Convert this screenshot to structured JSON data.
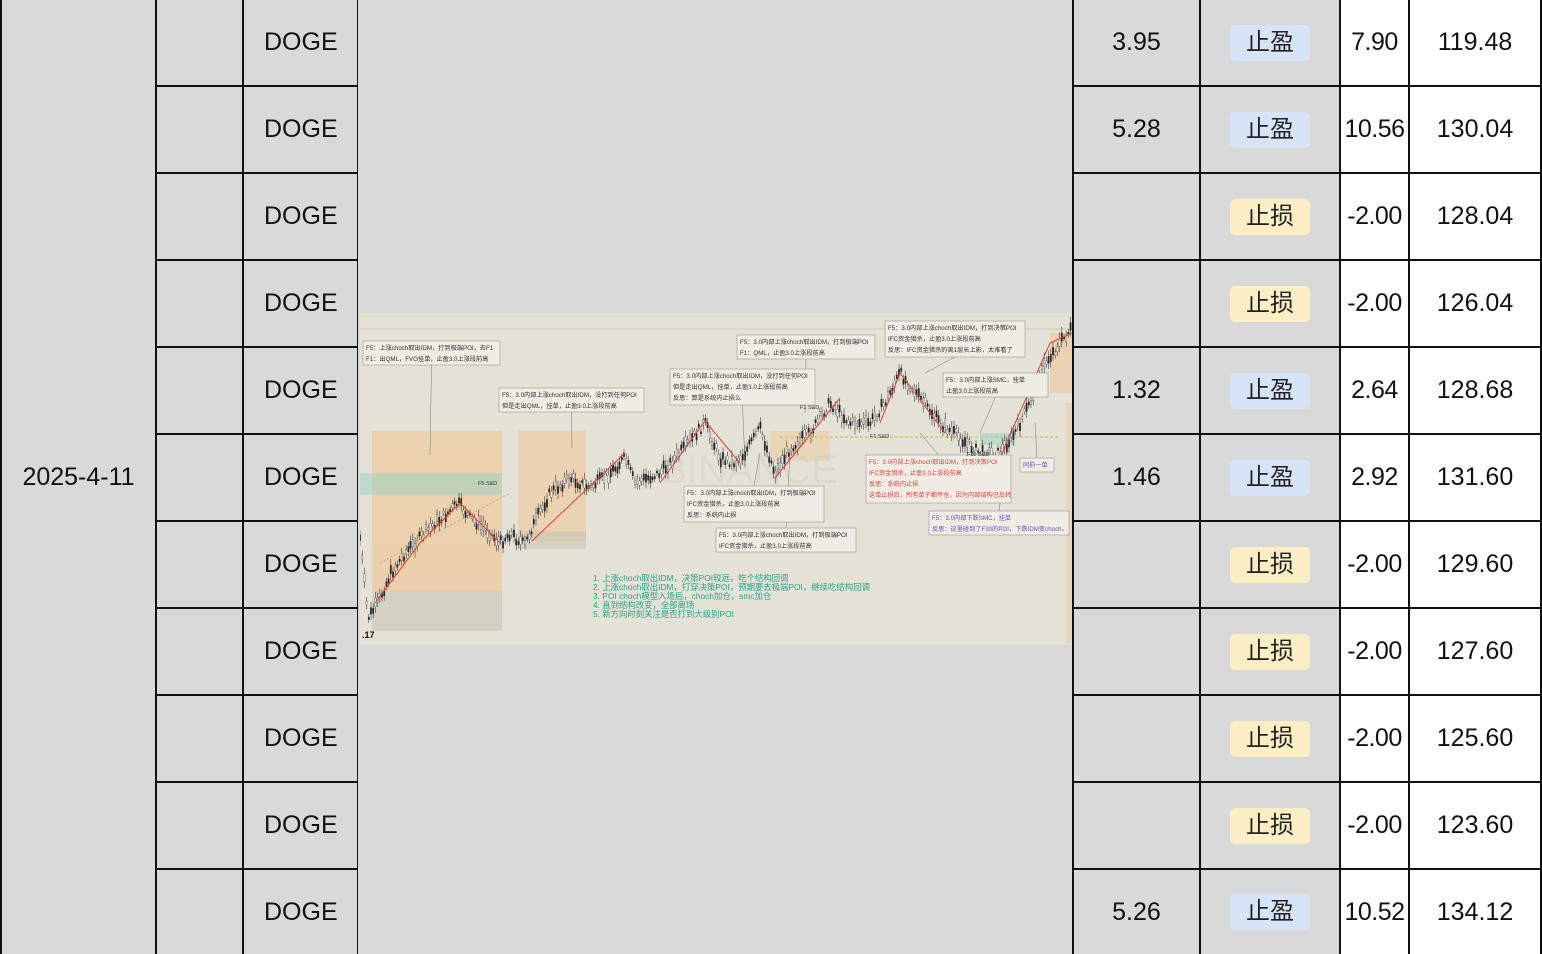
{
  "date": "2025-4-11",
  "rows": [
    {
      "symbol": "DOGE",
      "pnl": "3.95",
      "result": "止盈",
      "type": "tp",
      "r": "7.90",
      "total": "119.48"
    },
    {
      "symbol": "DOGE",
      "pnl": "5.28",
      "result": "止盈",
      "type": "tp",
      "r": "10.56",
      "total": "130.04"
    },
    {
      "symbol": "DOGE",
      "pnl": "",
      "result": "止损",
      "type": "sl",
      "r": "-2.00",
      "total": "128.04"
    },
    {
      "symbol": "DOGE",
      "pnl": "",
      "result": "止损",
      "type": "sl",
      "r": "-2.00",
      "total": "126.04"
    },
    {
      "symbol": "DOGE",
      "pnl": "1.32",
      "result": "止盈",
      "type": "tp",
      "r": "2.64",
      "total": "128.68"
    },
    {
      "symbol": "DOGE",
      "pnl": "1.46",
      "result": "止盈",
      "type": "tp",
      "r": "2.92",
      "total": "131.60"
    },
    {
      "symbol": "DOGE",
      "pnl": "",
      "result": "止损",
      "type": "sl",
      "r": "-2.00",
      "total": "129.60"
    },
    {
      "symbol": "DOGE",
      "pnl": "",
      "result": "止损",
      "type": "sl",
      "r": "-2.00",
      "total": "127.60"
    },
    {
      "symbol": "DOGE",
      "pnl": "",
      "result": "止损",
      "type": "sl",
      "r": "-2.00",
      "total": "125.60"
    },
    {
      "symbol": "DOGE",
      "pnl": "",
      "result": "止损",
      "type": "sl",
      "r": "-2.00",
      "total": "123.60"
    },
    {
      "symbol": "DOGE",
      "pnl": "5.26",
      "result": "止盈",
      "type": "tp",
      "r": "10.52",
      "total": "134.12"
    }
  ],
  "chart_image": {
    "watermark": "BINANCE",
    "price_label": ".17",
    "annotations": [
      {
        "lines": [
          "F5：上涨choch取出IDM，打到极端POI，去F1",
          "F1：出QML，FVG挂单，止盈3.0上涨段前高"
        ]
      },
      {
        "lines": [
          "F5：3.0内部上涨choch取出IDM，没打到任何POI",
          "但是走出QML，挂单，止盈3.0上涨段前高"
        ]
      },
      {
        "lines": [
          "F5：3.0内部上涨choch取出IDM，没打到任何POI",
          "但是走出QML，挂单，止盈3.0上涨段前高",
          "反思：算是系统内止损么"
        ]
      },
      {
        "lines": [
          "F5：3.0内部上涨choch取出IDM，打到极端POI",
          "F1：QML，止盈3.0上涨段前高"
        ]
      },
      {
        "lines": [
          "F5：3.0内部上涨choch取出IDM，打到决策POI",
          "IFC资金猎杀，止盈3.0上涨段前高",
          "反思：IFC资金猎杀的离1层长上影，太难看了"
        ]
      },
      {
        "lines": [
          "F5：3.0内部上涨SMC，挂单",
          "止盈3.0上涨段前高"
        ]
      },
      {
        "lines": [
          "F5：3.0内部上涨choch取出IDM，打到极端POI",
          "IFC资金猎杀，止盈3.0上涨段前高",
          "反思：系统内止损"
        ]
      },
      {
        "lines": [
          "F5：3.0内部上涨choch取出IDM，打到极端POI",
          "IFC资金猎杀，止盈3.0上涨段前高"
        ]
      },
      {
        "lines": [
          "F5：3.0内部上涨choch取出IDM，打到决策POI",
          "IFC资金猎杀，止盈3.0上涨段前高",
          "反思：系统内止损",
          "这单止损后，所有单子都平仓，因为内部结构已反转"
        ]
      },
      {
        "lines": [
          "F5：3.0内部下跌SMC，挂单",
          "反思：这里碰到了F30的POI，下跌IDM变choch，"
        ]
      },
      {
        "lines": [
          "同前一单"
        ]
      }
    ],
    "summary": [
      "1. 上涨choch取出IDM，决策POI较远，吃个结构回调",
      "2. 上涨choch取出IDM，打穿决策POI，预期要去极端POI，继续吃结构回调",
      "3. POI choch模型入场后，choch加仓，smc加仓",
      "4. 直到结构改变，全部离场",
      "5. 新方向时刻关注是否打到大级别POI"
    ],
    "zone_labels": [
      "F5 S&D",
      "F1 S&D",
      "F1 S&D",
      "F30 S&D"
    ],
    "colors": {
      "up": "#e0403a",
      "down": "#222222",
      "zone": "#f1c48d",
      "teal": "#8fd3c9",
      "note": "#2aa58a"
    }
  }
}
